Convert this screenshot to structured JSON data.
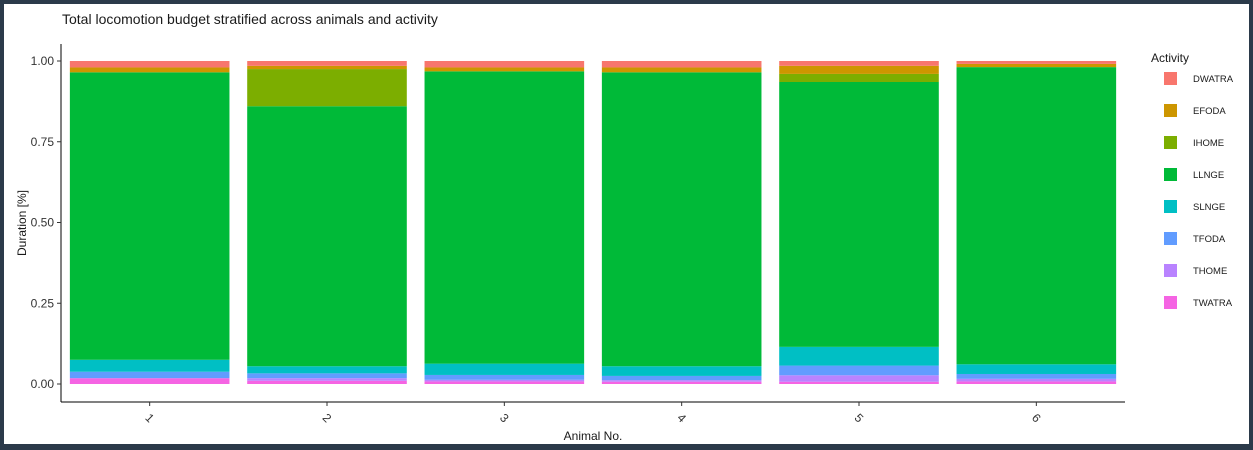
{
  "chart_data": {
    "type": "bar",
    "stacked": true,
    "title": "Total locomotion budget stratified across animals and activity",
    "xlabel": "Animal No.",
    "ylabel": "Duration [%]",
    "ylim": [
      0,
      1
    ],
    "yticks": [
      "0.00",
      "0.25",
      "0.50",
      "0.75",
      "1.00"
    ],
    "categories": [
      "1",
      "2",
      "3",
      "4",
      "5",
      "6"
    ],
    "legend_title": "Activity",
    "legend_position": "right",
    "grid": false,
    "series": [
      {
        "name": "TWATRA",
        "color": "#F564E3",
        "values": [
          0.018,
          0.01,
          0.008,
          0.007,
          0.007,
          0.008
        ]
      },
      {
        "name": "THOME",
        "color": "#B983FF",
        "values": [
          0.0,
          0.008,
          0.005,
          0.005,
          0.02,
          0.008
        ]
      },
      {
        "name": "TFODA",
        "color": "#619CFF",
        "values": [
          0.02,
          0.015,
          0.015,
          0.013,
          0.03,
          0.015
        ]
      },
      {
        "name": "SLNGE",
        "color": "#00BFC4",
        "values": [
          0.037,
          0.022,
          0.035,
          0.03,
          0.058,
          0.03
        ]
      },
      {
        "name": "LLNGE",
        "color": "#00BA38",
        "values": [
          0.89,
          0.805,
          0.905,
          0.91,
          0.82,
          0.92
        ]
      },
      {
        "name": "IHOME",
        "color": "#7CAE00",
        "values": [
          0.0,
          0.115,
          0.0,
          0.0,
          0.025,
          0.0
        ]
      },
      {
        "name": "EFODA",
        "color": "#CD9600",
        "values": [
          0.015,
          0.01,
          0.012,
          0.015,
          0.025,
          0.01
        ]
      },
      {
        "name": "DWATRA",
        "color": "#F8766D",
        "values": [
          0.02,
          0.015,
          0.02,
          0.02,
          0.015,
          0.009
        ]
      }
    ],
    "legend_order": [
      "DWATRA",
      "EFODA",
      "IHOME",
      "LLNGE",
      "SLNGE",
      "TFODA",
      "THOME",
      "TWATRA"
    ]
  }
}
